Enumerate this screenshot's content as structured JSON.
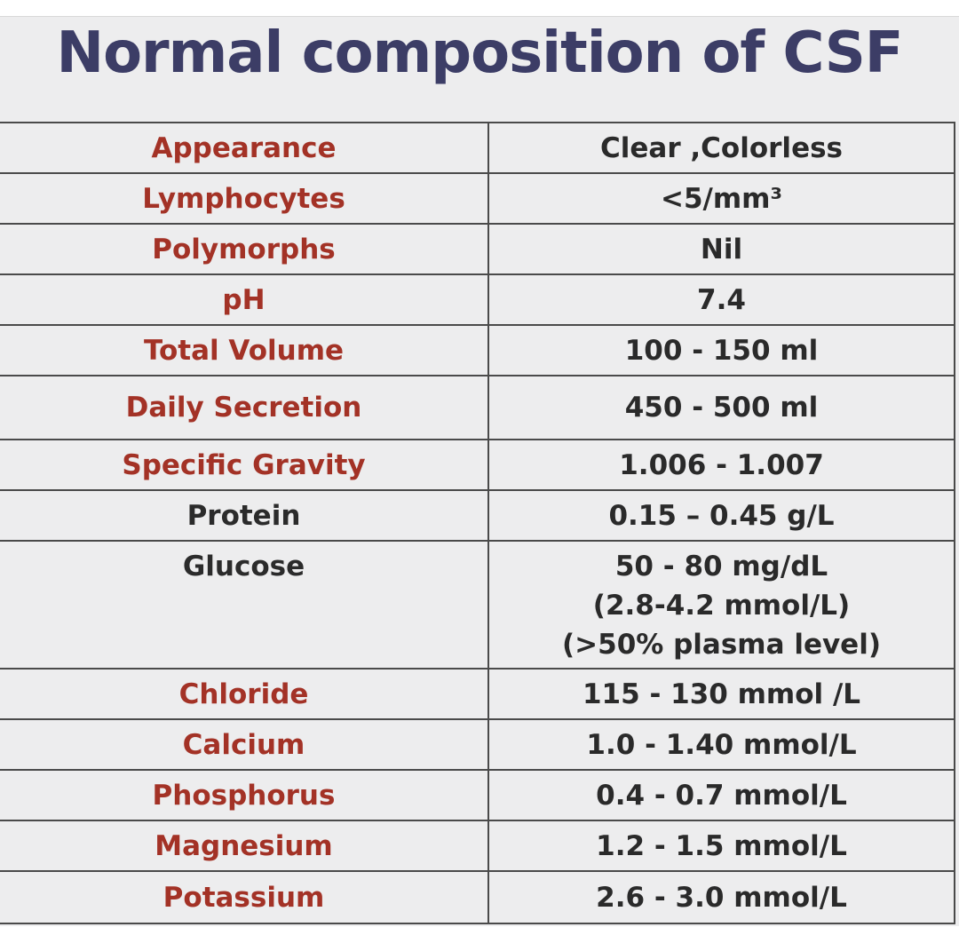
{
  "title": "Normal composition of CSF",
  "rows": [
    {
      "parameter": "Appearance",
      "value": [
        "Clear ,Colorless"
      ]
    },
    {
      "parameter": "Lymphocytes",
      "value": [
        "<5/mm³"
      ]
    },
    {
      "parameter": "Polymorphs",
      "value": [
        "Nil"
      ]
    },
    {
      "parameter": "pH",
      "value": [
        "7.4"
      ]
    },
    {
      "parameter": "Total Volume",
      "value": [
        "100 - 150 ml"
      ]
    },
    {
      "parameter": "Daily Secretion",
      "value": [
        "450 - 500 ml"
      ]
    },
    {
      "parameter": "Specific Gravity",
      "value": [
        "1.006 - 1.007"
      ]
    },
    {
      "parameter": "Protein",
      "value": [
        "0.15 – 0.45 g/L"
      ]
    },
    {
      "parameter": "Glucose",
      "value": [
        "50 - 80  mg/dL",
        "(2.8-4.2 mmol/L)",
        "(>50% plasma level)"
      ]
    },
    {
      "parameter": "Chloride",
      "value": [
        "115 - 130 mmol /L"
      ]
    },
    {
      "parameter": "Calcium",
      "value": [
        "1.0 - 1.40 mmol/L"
      ]
    },
    {
      "parameter": "Phosphorus",
      "value": [
        "0.4 - 0.7 mmol/L"
      ]
    },
    {
      "parameter": "Magnesium",
      "value": [
        "1.2 - 1.5 mmol/L"
      ]
    },
    {
      "parameter": "Potassium",
      "value": [
        "2.6 - 3.0 mmol/L"
      ]
    }
  ],
  "colors": {
    "title": "#3c3d66",
    "parameter_red": "#a33226",
    "parameter_dark": "#2b2b2b",
    "value": "#2a2a2a",
    "background": "#ededee"
  }
}
